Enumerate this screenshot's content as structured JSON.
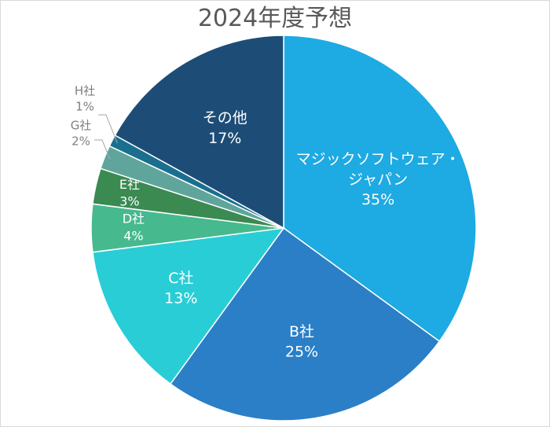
{
  "chart_data": {
    "type": "pie",
    "title": "2024年度予想",
    "start_angle_deg": 0,
    "direction": "clockwise",
    "slices": [
      {
        "name": "マジックソフトウェア・ジャパン",
        "name_lines": [
          "マジックソフトウェア・",
          "ジャパン"
        ],
        "value": 35,
        "label": "35%",
        "color": "#1eaae2"
      },
      {
        "name": "B社",
        "name_lines": [
          "B社"
        ],
        "value": 25,
        "label": "25%",
        "color": "#2a7fc7"
      },
      {
        "name": "C社",
        "name_lines": [
          "C社"
        ],
        "value": 13,
        "label": "13%",
        "color": "#29cdd6"
      },
      {
        "name": "D社",
        "name_lines": [
          "D社"
        ],
        "value": 4,
        "label": "4%",
        "color": "#47b98f"
      },
      {
        "name": "E社",
        "name_lines": [
          "E社"
        ],
        "value": 3,
        "label": "3%",
        "color": "#3a8a52"
      },
      {
        "name": "G社",
        "name_lines": [
          "G社"
        ],
        "value": 2,
        "label": "2%",
        "color": "#5fa59c"
      },
      {
        "name": "H社",
        "name_lines": [
          "H社"
        ],
        "value": 1,
        "label": "1%",
        "color": "#1a6f8f"
      },
      {
        "name": "その他",
        "name_lines": [
          "その他"
        ],
        "value": 17,
        "label": "17%",
        "color": "#1d4d77"
      }
    ],
    "legend": "none"
  }
}
